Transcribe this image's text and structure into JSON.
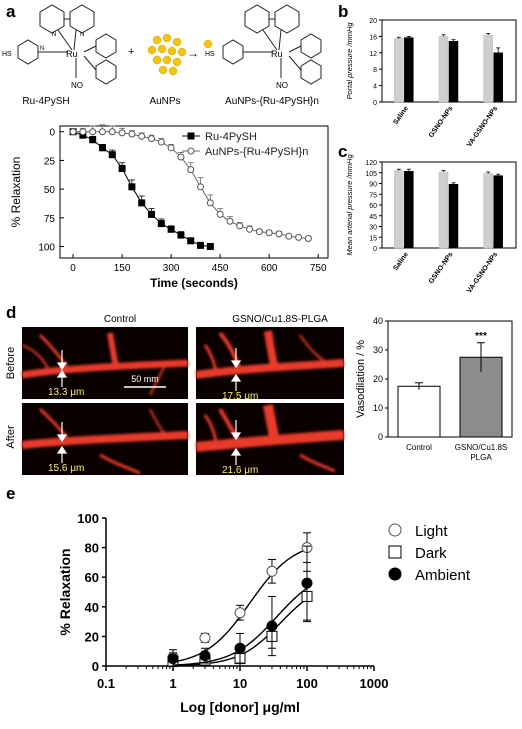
{
  "panels": {
    "a": "a",
    "b": "b",
    "c": "c",
    "d": "d",
    "e": "e"
  },
  "scheme": {
    "molecule_left": "Ru-4PySH",
    "nanoparticles": "AuNPs",
    "product": "AuNPs-{Ru-4PySH}n",
    "metal": "Ru",
    "ligand_label": "NO",
    "thiol_label": "HS",
    "n_label": "N",
    "plus_sign": "+",
    "arrow": "→"
  },
  "micro": {
    "col_control": "Control",
    "col_treated": "GSNO/Cu1.8S-PLGA",
    "row_before": "Before",
    "row_after": "After",
    "scale_bar": "50 mm",
    "measurements": [
      "13.3 μm",
      "17.5 μm",
      "15.6 μm",
      "21.6 μm"
    ]
  },
  "chart_data": [
    {
      "id": "a",
      "type": "line",
      "xlabel": "Time (seconds)",
      "ylabel": "% Relaxation",
      "xlim": [
        -40,
        780
      ],
      "ylim": [
        110,
        -5
      ],
      "xticks": [
        0,
        150,
        300,
        450,
        600,
        750
      ],
      "yticks": [
        0,
        25,
        50,
        75,
        100
      ],
      "legend_position": "top-right",
      "series": [
        {
          "name": "Ru-4PySH",
          "marker": "square-filled",
          "x": [
            0,
            30,
            60,
            90,
            120,
            150,
            180,
            210,
            240,
            270,
            300,
            330,
            360,
            390,
            420
          ],
          "y": [
            0,
            3,
            7,
            14,
            20,
            32,
            48,
            62,
            72,
            80,
            85,
            90,
            95,
            99,
            100
          ],
          "err": [
            0,
            2,
            3,
            3,
            4,
            5,
            6,
            6,
            5,
            4,
            3,
            3,
            2,
            1,
            0
          ]
        },
        {
          "name": "AuNPs-{Ru-4PySH}n",
          "marker": "circle-open",
          "x": [
            0,
            30,
            60,
            90,
            120,
            150,
            180,
            210,
            240,
            270,
            300,
            330,
            360,
            390,
            420,
            450,
            480,
            510,
            540,
            570,
            600,
            630,
            660,
            690,
            720
          ],
          "y": [
            0,
            0,
            0,
            0,
            0,
            1,
            2,
            4,
            6,
            9,
            14,
            22,
            33,
            48,
            62,
            72,
            78,
            82,
            85,
            87,
            88,
            89,
            91,
            92,
            93
          ],
          "err": [
            0,
            3,
            5,
            6,
            5,
            4,
            3,
            3,
            3,
            3,
            3,
            4,
            6,
            8,
            7,
            5,
            4,
            3,
            3,
            2,
            2,
            2,
            1,
            1,
            1
          ]
        }
      ]
    },
    {
      "id": "b",
      "type": "bar",
      "ylabel": "Portal pressure /mmHg",
      "ylim": [
        0,
        20
      ],
      "yticks": [
        0,
        4,
        8,
        12,
        16,
        20
      ],
      "categories": [
        "Saline",
        "GSNO-NPs",
        "VA-GSNO-NPs"
      ],
      "series": [
        {
          "color": "#cfcfcf",
          "values": [
            15.5,
            16.0,
            16.3
          ],
          "err": [
            0.3,
            0.4,
            0.4
          ]
        },
        {
          "color": "#000000",
          "values": [
            15.7,
            14.8,
            12.0
          ],
          "err": [
            0.3,
            0.4,
            1.2
          ]
        }
      ]
    },
    {
      "id": "c",
      "type": "bar",
      "ylabel": "Mean arterial pressure /mmHg",
      "ylim": [
        0,
        120
      ],
      "yticks": [
        0,
        15,
        30,
        45,
        60,
        75,
        90,
        105,
        120
      ],
      "categories": [
        "Saline",
        "GSNO-NPs",
        "VA-GSNO-NPs"
      ],
      "series": [
        {
          "color": "#cfcfcf",
          "values": [
            108,
            106,
            104
          ],
          "err": [
            2,
            2,
            2
          ]
        },
        {
          "color": "#000000",
          "values": [
            107,
            89,
            101
          ],
          "err": [
            3,
            2,
            2
          ]
        }
      ]
    },
    {
      "id": "d",
      "type": "bar",
      "ylabel": "Vasodilation / %",
      "ylim": [
        0,
        40
      ],
      "yticks": [
        0,
        10,
        20,
        30,
        40
      ],
      "categories": [
        "Control",
        "GSNO/Cu1.8S\nPLGA"
      ],
      "values": [
        17.5,
        27.5
      ],
      "err": [
        1.2,
        5.0
      ],
      "colors": [
        "#ffffff",
        "#8c8c8c"
      ],
      "annotation": "***"
    },
    {
      "id": "e",
      "type": "line",
      "xscale": "log",
      "xlabel": "Log [donor] μg/ml",
      "ylabel": "% Relaxation",
      "xlim": [
        0.1,
        1000
      ],
      "ylim": [
        0,
        100
      ],
      "xticks": [
        0.1,
        1,
        10,
        100,
        1000
      ],
      "xtick_labels": [
        "0.1",
        "1",
        "10",
        "100",
        "1000"
      ],
      "yticks": [
        0,
        20,
        40,
        60,
        80,
        100
      ],
      "legend_position": "top-right",
      "series": [
        {
          "name": "Light",
          "marker": "circle-open",
          "x": [
            1,
            3,
            10,
            30,
            100
          ],
          "y": [
            6,
            19,
            36,
            64,
            80
          ],
          "err": [
            3,
            3,
            5,
            8,
            10
          ],
          "fit_top": 85,
          "fit_ec50": 14,
          "fit_hill": 1.3
        },
        {
          "name": "Dark",
          "marker": "square-open",
          "x": [
            1,
            3,
            10,
            30,
            100
          ],
          "y": [
            3,
            4,
            5,
            20,
            47
          ],
          "err": [
            3,
            3,
            5,
            8,
            17
          ],
          "fit_top": 58,
          "fit_ec50": 40,
          "fit_hill": 1.4
        },
        {
          "name": "Ambient",
          "marker": "circle-filled",
          "x": [
            1,
            3,
            10,
            30,
            100
          ],
          "y": [
            5,
            7,
            12,
            27,
            56
          ],
          "err": [
            6,
            5,
            10,
            20,
            25
          ],
          "fit_top": 66,
          "fit_ec50": 35,
          "fit_hill": 1.3
        }
      ]
    }
  ]
}
